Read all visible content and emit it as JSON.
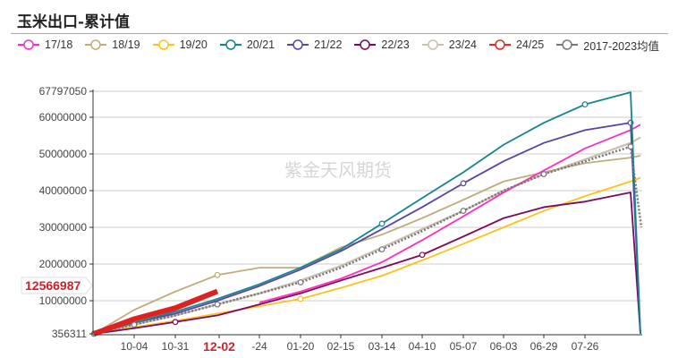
{
  "header": {
    "title": "玉米出口-累计值"
  },
  "legend": [
    {
      "label": "17/18",
      "color": "#ff2ebf",
      "style": "solid"
    },
    {
      "label": "18/19",
      "color": "#bfae7a",
      "style": "solid"
    },
    {
      "label": "19/20",
      "color": "#ffc21a",
      "style": "solid"
    },
    {
      "label": "20/21",
      "color": "#12868c",
      "style": "solid"
    },
    {
      "label": "21/22",
      "color": "#5a44a3",
      "style": "solid"
    },
    {
      "label": "22/23",
      "color": "#7b0a5d",
      "style": "solid"
    },
    {
      "label": "23/24",
      "color": "#cbbfae",
      "style": "solid"
    },
    {
      "label": "24/25",
      "color": "#e02a2a",
      "style": "solid"
    },
    {
      "label": "2017-2023均值",
      "color": "#777777",
      "style": "dotted"
    }
  ],
  "watermark": "紫金天风期货",
  "callout": {
    "value": "12566987",
    "color": "#d0202a"
  },
  "highlight_tick": "12-02",
  "chart_data": {
    "type": "line",
    "title": "玉米出口-累计值",
    "xlabel": "",
    "ylabel": "",
    "ylim": [
      356311,
      67797050
    ],
    "y_ticks": [
      "356311",
      "10000000",
      "20000000",
      "30000000",
      "40000000",
      "50000000",
      "60000000",
      "67797050"
    ],
    "x_ticks": [
      "10-04",
      "10-31",
      "12-02",
      "-24",
      "01-20",
      "02-15",
      "03-14",
      "04-10",
      "05-07",
      "06-03",
      "06-29",
      "07-26"
    ],
    "grid": true,
    "legend_position": "top",
    "x": [
      "09-01",
      "10-04",
      "10-31",
      "12-02",
      "12-24",
      "01-20",
      "02-15",
      "03-14",
      "04-10",
      "05-07",
      "06-03",
      "06-29",
      "07-26",
      "08-20",
      "08-31"
    ],
    "series": [
      {
        "name": "17/18",
        "values": [
          null,
          null,
          null,
          null,
          9500000,
          12500000,
          16000000,
          20500000,
          26500000,
          33000000,
          39500000,
          45500000,
          51500000,
          56500000,
          58000000
        ]
      },
      {
        "name": "18/19",
        "values": [
          356311,
          7500000,
          12500000,
          17000000,
          19000000,
          19000000,
          24500000,
          28000000,
          32500000,
          37500000,
          42500000,
          45000000,
          47500000,
          49000000,
          49500000
        ]
      },
      {
        "name": "19/20",
        "values": [
          356311,
          2800000,
          4500000,
          6500000,
          8500000,
          10500000,
          13500000,
          16800000,
          21000000,
          25500000,
          30000000,
          34500000,
          38500000,
          42500000,
          43500000
        ]
      },
      {
        "name": "20/21",
        "values": [
          356311,
          4000000,
          7000000,
          10500000,
          14500000,
          19000000,
          24000000,
          31000000,
          38000000,
          45000000,
          52500000,
          58500000,
          63500000,
          66800000,
          0
        ]
      },
      {
        "name": "21/22",
        "values": [
          356311,
          4000000,
          6500000,
          10000000,
          14000000,
          18500000,
          23500000,
          29500000,
          35500000,
          42000000,
          48000000,
          53000000,
          56500000,
          58500000,
          0
        ]
      },
      {
        "name": "22/23",
        "values": [
          356311,
          2500000,
          4200000,
          6000000,
          9000000,
          12000000,
          15500000,
          19000000,
          22500000,
          27500000,
          32500000,
          35500000,
          37000000,
          39500000,
          0
        ]
      },
      {
        "name": "23/24",
        "values": [
          356311,
          3500000,
          6000000,
          9000000,
          12000000,
          15500000,
          19500000,
          24500000,
          29500000,
          34500000,
          40000000,
          44500000,
          48500000,
          53000000,
          54500000
        ]
      },
      {
        "name": "24/25",
        "values": [
          356311,
          5000000,
          8000000,
          12566987
        ]
      },
      {
        "name": "2017-2023均值",
        "values": [
          356311,
          3500000,
          6000000,
          9000000,
          12000000,
          15000000,
          19000000,
          24000000,
          29000000,
          34500000,
          40000000,
          44500000,
          48000000,
          52000000,
          30000000
        ]
      }
    ]
  }
}
